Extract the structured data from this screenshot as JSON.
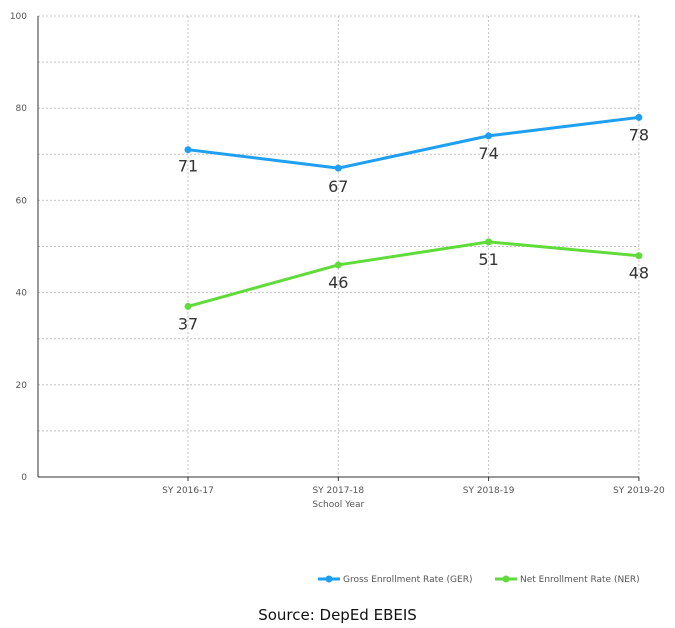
{
  "chart_data": {
    "type": "line",
    "categories": [
      "SY 2016-17",
      "SY 2017-18",
      "SY 2018-19",
      "SY 2019-20"
    ],
    "xlabel": "School Year",
    "ylabel": "",
    "title": "",
    "ylim": [
      0,
      100
    ],
    "yticks": [
      0,
      20,
      40,
      60,
      80,
      100
    ],
    "grid": true,
    "legend_position": "bottom-right",
    "series": [
      {
        "name": "Gross Enrollment Rate (GER)",
        "values": [
          71,
          67,
          74,
          78
        ],
        "labels": [
          "71",
          "67",
          "74",
          "78"
        ],
        "color": "#1e9ff2"
      },
      {
        "name": "Net Enrollment Rate (NER)",
        "values": [
          37,
          46,
          51,
          48
        ],
        "labels": [
          "37",
          "46",
          "51",
          "48"
        ],
        "color": "#5fdb3a"
      }
    ]
  },
  "source": "Source: DepEd EBEIS"
}
